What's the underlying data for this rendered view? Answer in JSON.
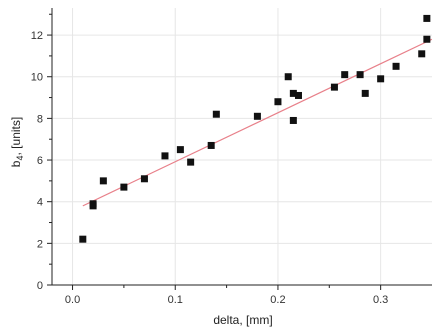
{
  "chart_data": {
    "type": "scatter",
    "xlabel": "delta, [mm]",
    "ylabel_main": "b",
    "ylabel_sub": "4",
    "ylabel_rest": ", [units]",
    "xlim": [
      -0.02,
      0.35
    ],
    "ylim": [
      0,
      13.3
    ],
    "xticks": [
      0.0,
      0.1,
      0.2,
      0.3
    ],
    "xtick_labels": [
      "0.0",
      "0.1",
      "0.2",
      "0.3"
    ],
    "yticks": [
      0,
      2,
      4,
      6,
      8,
      10,
      12
    ],
    "ytick_labels": [
      "0",
      "2",
      "4",
      "6",
      "8",
      "10",
      "12"
    ],
    "grid": true,
    "colors": {
      "points": "#111111",
      "fit_line": "#e8808a",
      "grid": "#e6e6e6",
      "axis": "#222222"
    },
    "series": [
      {
        "x": [
          0.01,
          0.02,
          0.02,
          0.03,
          0.05,
          0.07,
          0.09,
          0.105,
          0.115,
          0.135,
          0.14,
          0.18,
          0.2,
          0.21,
          0.215,
          0.215,
          0.22,
          0.255,
          0.265,
          0.28,
          0.285,
          0.3,
          0.315,
          0.34,
          0.345,
          0.345
        ],
        "y": [
          2.2,
          3.8,
          3.9,
          5.0,
          4.7,
          5.1,
          6.2,
          6.5,
          5.9,
          6.7,
          8.2,
          8.1,
          8.8,
          10.0,
          9.2,
          7.9,
          9.1,
          9.5,
          10.1,
          10.1,
          9.2,
          9.9,
          10.5,
          11.1,
          11.8,
          12.8
        ]
      }
    ],
    "fit_line": {
      "x": [
        0.01,
        0.35
      ],
      "y": [
        3.8,
        11.8
      ]
    }
  }
}
